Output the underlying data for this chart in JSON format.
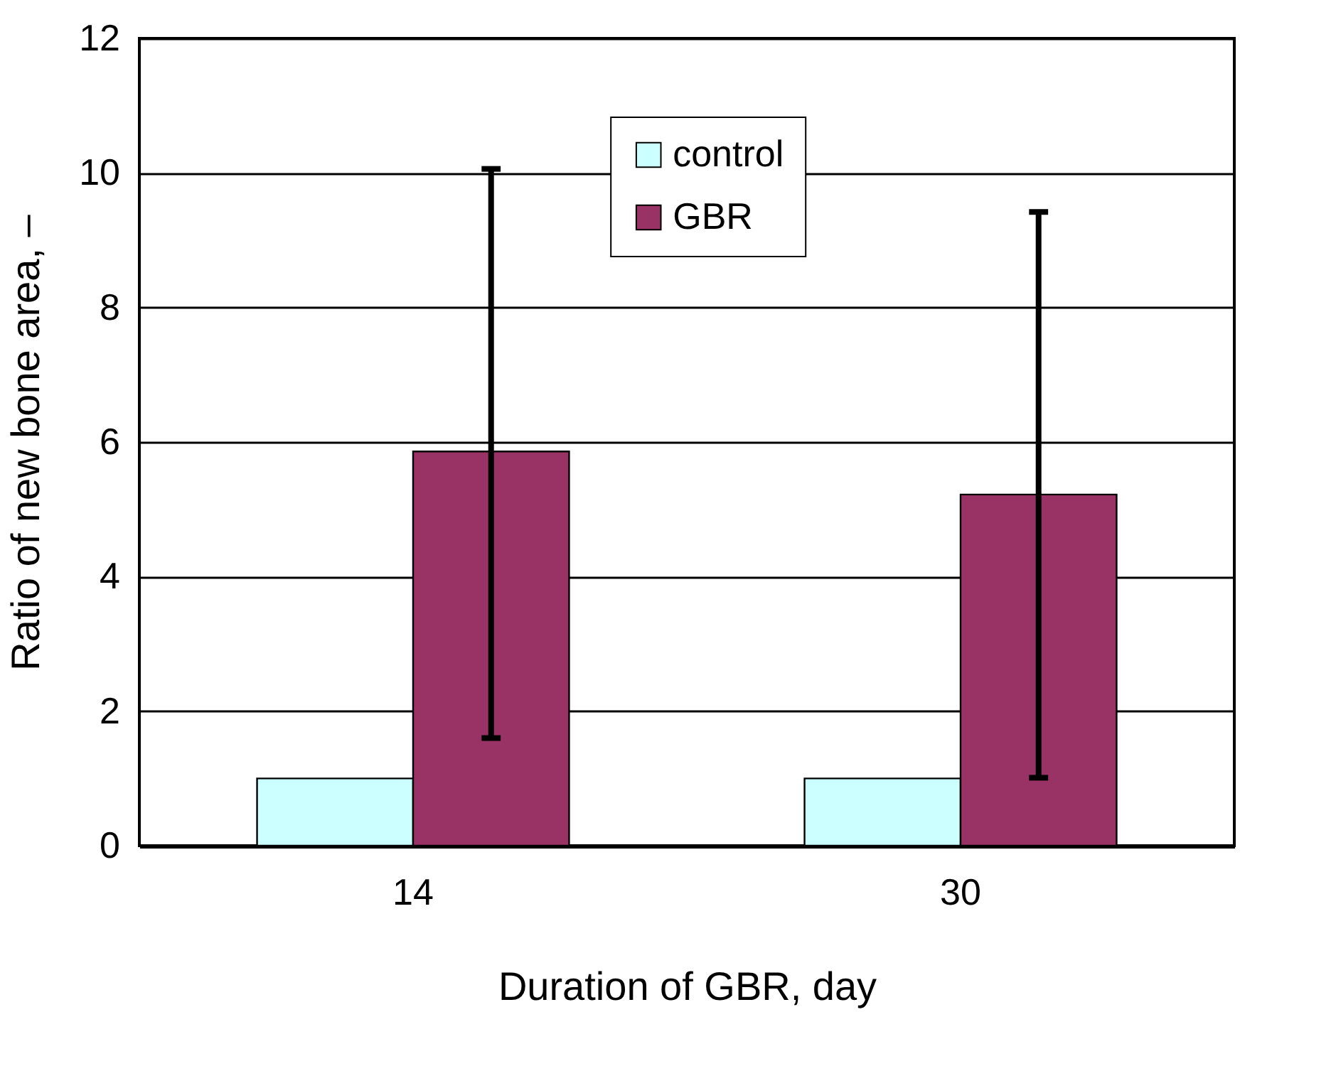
{
  "chart_data": {
    "type": "bar",
    "xlabel": "Duration of GBR, day",
    "ylabel": "Ratio of new bone area, –",
    "categories": [
      "14",
      "30"
    ],
    "series": [
      {
        "name": "control",
        "color": "#ccffff",
        "values": [
          1.0,
          1.0
        ]
      },
      {
        "name": "GBR",
        "color": "#993366",
        "values": [
          5.86,
          5.22
        ],
        "errors": [
          [
            1.6,
            10.06
          ],
          [
            1.01,
            9.42
          ]
        ]
      }
    ],
    "ylim": [
      0,
      12
    ],
    "yticks": [
      0,
      2,
      4,
      6,
      8,
      10,
      12
    ],
    "grid": "y",
    "legend": "top"
  }
}
